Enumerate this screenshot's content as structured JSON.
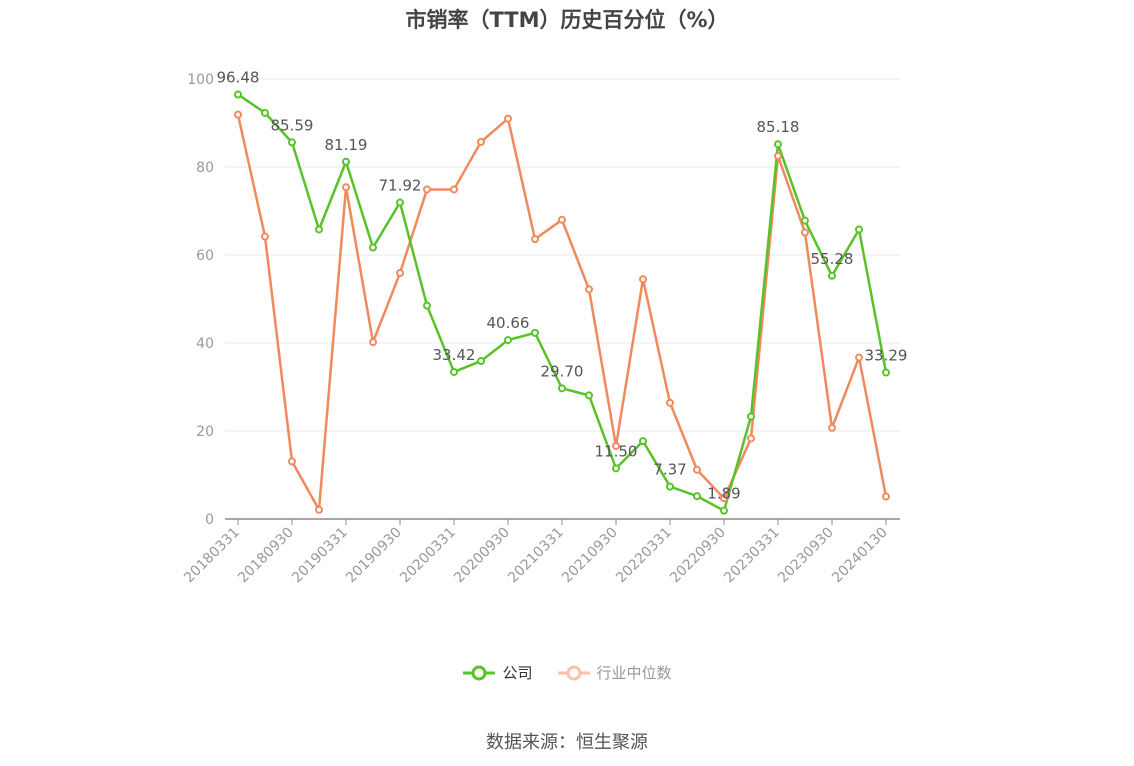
{
  "chart_data": {
    "type": "line",
    "title": "市销率（TTM）历史百分位（%）",
    "ylim": [
      0,
      100
    ],
    "yticks": [
      0,
      20,
      40,
      60,
      80,
      100
    ],
    "grid": true,
    "legend_position": "bottom",
    "x": [
      "20180331",
      "20180630",
      "20180930",
      "20181231",
      "20190331",
      "20190630",
      "20190930",
      "20191231",
      "20200331",
      "20200630",
      "20200930",
      "20201231",
      "20210331",
      "20210630",
      "20210930",
      "20211231",
      "20220331",
      "20220630",
      "20220930",
      "20221231",
      "20230331",
      "20230630",
      "20230930",
      "20231231",
      "20240130"
    ],
    "xtick_labels": [
      "20180331",
      "20180930",
      "20190331",
      "20190930",
      "20200331",
      "20200930",
      "20210331",
      "20210930",
      "20220331",
      "20220930",
      "20230331",
      "20230930",
      "20240130"
    ],
    "series": [
      {
        "name": "公司",
        "color": "#5ac229",
        "values": [
          96.48,
          92.3,
          85.59,
          65.8,
          81.19,
          61.7,
          71.92,
          48.5,
          33.42,
          35.9,
          40.66,
          42.3,
          29.7,
          28.1,
          11.5,
          17.7,
          7.37,
          5.2,
          1.89,
          23.3,
          85.18,
          67.8,
          55.28,
          65.8,
          33.29
        ],
        "labels": [
          "96.48",
          "",
          "85.59",
          "",
          "81.19",
          "",
          "71.92",
          "",
          "33.42",
          "",
          "40.66",
          "",
          "29.70",
          "",
          "11.50",
          "",
          "7.37",
          "",
          "1.89",
          "",
          "85.18",
          "",
          "55.28",
          "",
          "33.29"
        ]
      },
      {
        "name": "行业中位数",
        "color": "#f08a5d",
        "values": [
          91.9,
          64.2,
          13.1,
          2.1,
          75.4,
          40.2,
          55.9,
          74.9,
          74.9,
          85.7,
          91.0,
          63.6,
          68.0,
          52.2,
          16.6,
          54.5,
          26.4,
          11.2,
          4.7,
          18.3,
          82.5,
          65.1,
          20.7,
          36.7,
          5.1
        ]
      }
    ]
  },
  "legend": {
    "company": "公司",
    "industry": "行业中位数"
  },
  "source": "数据来源：恒生聚源"
}
